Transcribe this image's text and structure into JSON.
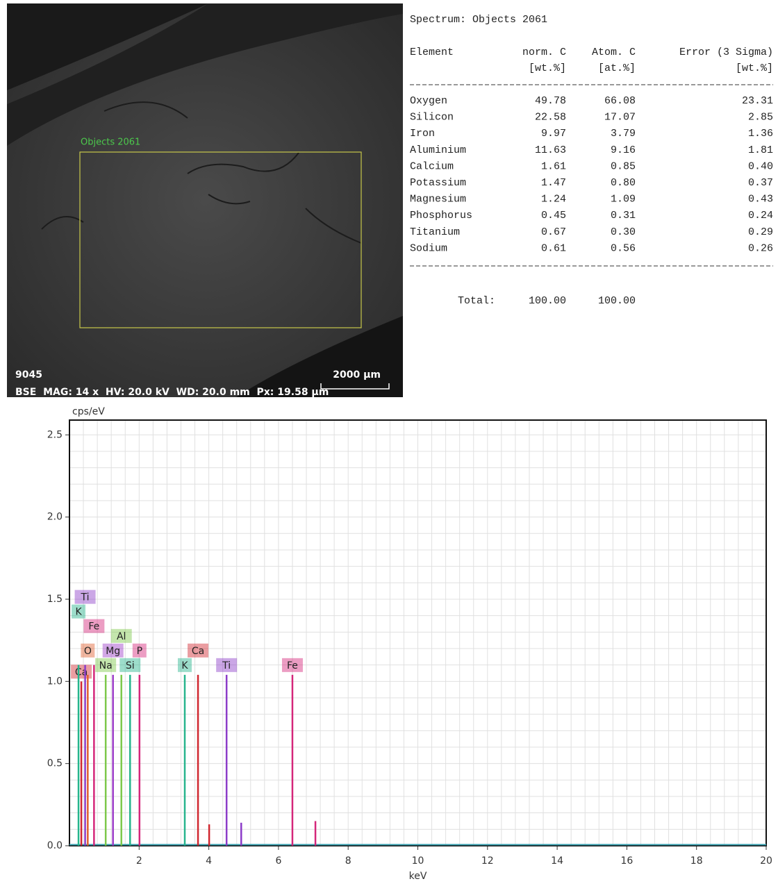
{
  "image": {
    "region_label": "Objects 2061",
    "sample_id": "9045",
    "scale_label": "2000 µm",
    "info": "BSE  MAG: 14 x  HV: 20.0 kV  WD: 20.0 mm  Px: 19.58 µm"
  },
  "table": {
    "title": "Spectrum: Objects 2061",
    "header": [
      [
        "Element",
        "norm. C",
        "Atom. C",
        "Error (3 Sigma)"
      ],
      [
        "[wt.%]",
        "[at.%]",
        "[wt.%]"
      ]
    ],
    "rows": [
      [
        "Oxygen",
        "49.78",
        "66.08",
        "23.31"
      ],
      [
        "Silicon",
        "22.58",
        "17.07",
        "2.85"
      ],
      [
        "Iron",
        "9.97",
        "3.79",
        "1.36"
      ],
      [
        "Aluminium",
        "11.63",
        "9.16",
        "1.81"
      ],
      [
        "Calcium",
        "1.61",
        "0.85",
        "0.40"
      ],
      [
        "Potassium",
        "1.47",
        "0.80",
        "0.37"
      ],
      [
        "Magnesium",
        "1.24",
        "1.09",
        "0.43"
      ],
      [
        "Phosphorus",
        "0.45",
        "0.31",
        "0.24"
      ],
      [
        "Titanium",
        "0.67",
        "0.30",
        "0.29"
      ],
      [
        "Sodium",
        "0.61",
        "0.56",
        "0.26"
      ]
    ],
    "total": [
      "Total:",
      "100.00",
      "100.00"
    ]
  },
  "chart_data": {
    "type": "spectrum",
    "y_label": "cps/eV",
    "x_label": "keV",
    "xlim": [
      0,
      20
    ],
    "xticks": [
      2,
      4,
      6,
      8,
      10,
      12,
      14,
      16,
      18,
      20
    ],
    "ylim": [
      0,
      2.59
    ],
    "yticks": [
      {
        "value": 0,
        "label": "0.0"
      },
      {
        "value": 0.5,
        "label": "0.5"
      },
      {
        "value": 1,
        "label": "1.0"
      },
      {
        "value": 1.5,
        "label": "1.5"
      },
      {
        "value": 2,
        "label": "2.0"
      },
      {
        "value": 2.5,
        "label": "2.5"
      }
    ],
    "grid": true,
    "peaks": [
      {
        "label": "Ca",
        "x": 0.34,
        "value": 1.0,
        "color": "#d0262e"
      },
      {
        "label": "O",
        "x": 0.525,
        "value": 1.04,
        "color": "#e0602e"
      },
      {
        "label": "Fe",
        "x": 0.705,
        "value": 1.1,
        "color": "#d4267a"
      },
      {
        "label": "K",
        "x": 0.26,
        "value": 1.1,
        "color": "#26b48c"
      },
      {
        "label": "Ti",
        "x": 0.45,
        "value": 1.1,
        "color": "#8c3cc8"
      },
      {
        "label": "Na",
        "x": 1.04,
        "value": 1.04,
        "color": "#7cc84a"
      },
      {
        "label": "Mg",
        "x": 1.25,
        "value": 1.04,
        "color": "#9c3cc8"
      },
      {
        "label": "Al",
        "x": 1.49,
        "value": 1.04,
        "color": "#7cc84a"
      },
      {
        "label": "Si",
        "x": 1.74,
        "value": 1.04,
        "color": "#26b48c"
      },
      {
        "label": "P",
        "x": 2.01,
        "value": 1.04,
        "color": "#d4267a"
      },
      {
        "label": "K",
        "x": 3.31,
        "value": 1.04,
        "color": "#26b48c"
      },
      {
        "label": "Ca",
        "x": 3.69,
        "value": 1.04,
        "color": "#d0262e"
      },
      {
        "label": "Ti",
        "x": 4.51,
        "value": 1.04,
        "color": "#8c3cc8"
      },
      {
        "label": "Fe",
        "x": 6.4,
        "value": 1.04,
        "color": "#d4267a"
      },
      {
        "label": null,
        "x": 4.01,
        "value": 0.13,
        "color": "#d0262e"
      },
      {
        "label": null,
        "x": 4.93,
        "value": 0.14,
        "color": "#8c3cc8"
      },
      {
        "label": null,
        "x": 7.06,
        "value": 0.15,
        "color": "#d4267a"
      }
    ]
  }
}
